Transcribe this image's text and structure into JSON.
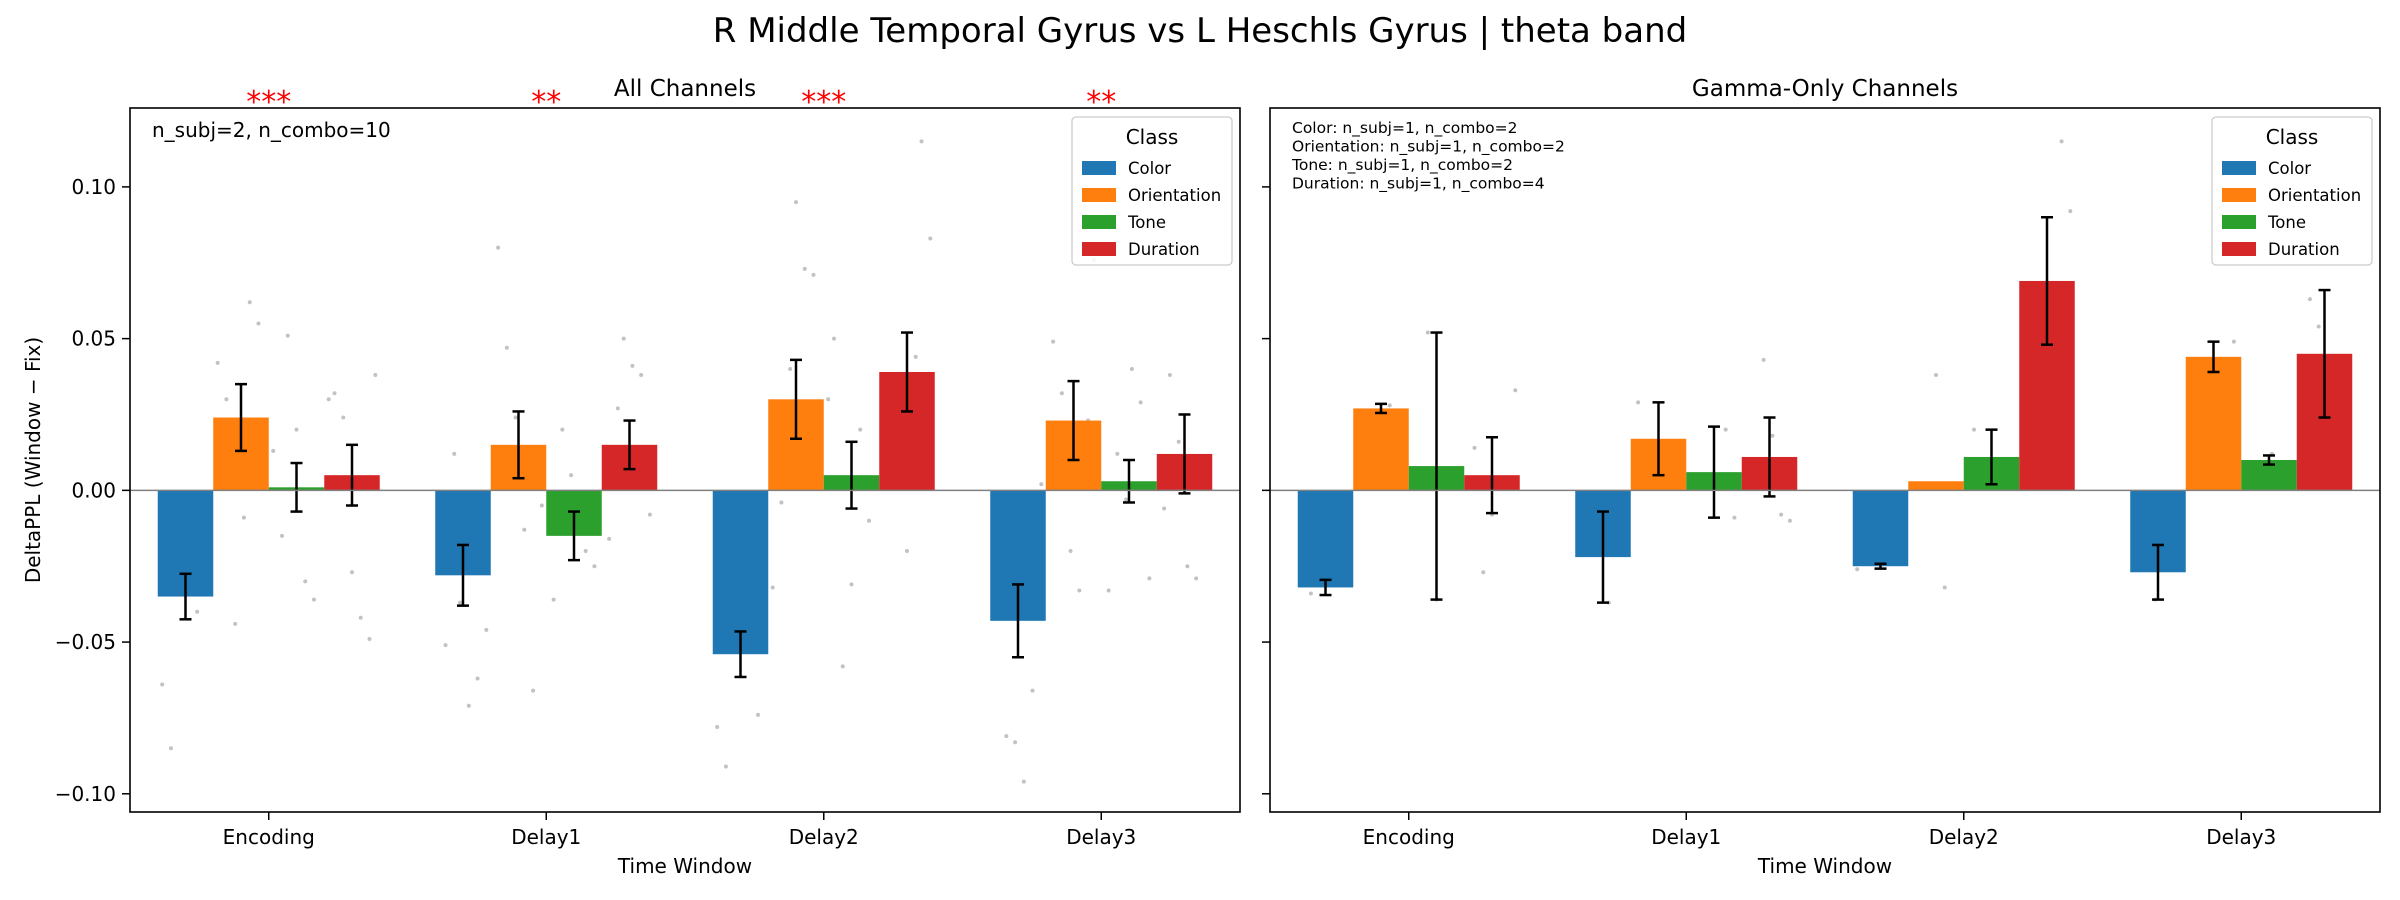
{
  "suptitle": "R Middle Temporal Gyrus vs L Heschls Gyrus  |  theta band",
  "colors": {
    "Color": "#1f77b4",
    "Orientation": "#ff7f0e",
    "Tone": "#2ca02c",
    "Duration": "#d62728",
    "significance": "#ff0000",
    "scatter": "#b3b3b3"
  },
  "legend_title": "Class",
  "classes": [
    "Color",
    "Orientation",
    "Tone",
    "Duration"
  ],
  "chart_data": [
    {
      "type": "bar",
      "title": "All Channels",
      "xlabel": "Time Window",
      "ylabel": "DeltaPPL (Window − Fix)",
      "ylim": [
        -0.106,
        0.126
      ],
      "yticks": [
        "0.10",
        "0.05",
        "0.00",
        "−0.05",
        "−0.10"
      ],
      "ytick_values": [
        0.1,
        0.05,
        0.0,
        -0.05,
        -0.1
      ],
      "categories": [
        "Encoding",
        "Delay1",
        "Delay2",
        "Delay3"
      ],
      "legend_placement": "top-right",
      "annotation": "n_subj=2, n_combo=10",
      "significance": [
        "***",
        "**",
        "***",
        "**"
      ],
      "series": [
        {
          "name": "Color",
          "values": [
            -0.035,
            -0.028,
            -0.054,
            -0.043
          ],
          "err": [
            0.0075,
            0.01,
            0.0075,
            0.012
          ]
        },
        {
          "name": "Orientation",
          "values": [
            0.024,
            0.015,
            0.03,
            0.023
          ],
          "err": [
            0.011,
            0.011,
            0.013,
            0.013
          ]
        },
        {
          "name": "Tone",
          "values": [
            0.001,
            -0.015,
            0.005,
            0.003
          ],
          "err": [
            0.008,
            0.008,
            0.011,
            0.007
          ]
        },
        {
          "name": "Duration",
          "values": [
            0.005,
            0.015,
            0.039,
            0.012
          ],
          "err": [
            0.01,
            0.008,
            0.013,
            0.013
          ]
        }
      ],
      "points": [
        [
          [
            -0.064,
            -0.085,
            -0.028,
            -0.02,
            -0.04
          ],
          [
            0.062,
            0.055,
            0.042,
            0.03,
            -0.044,
            -0.009
          ],
          [
            0.051,
            0.02,
            -0.03,
            -0.036,
            0.013,
            -0.015
          ],
          [
            0.038,
            0.032,
            0.024,
            -0.027,
            -0.042,
            -0.049,
            0.03
          ]
        ],
        [
          [
            -0.037,
            -0.071,
            -0.062,
            -0.046,
            -0.051,
            0.012
          ],
          [
            0.08,
            0.047,
            0.024,
            -0.013,
            -0.066,
            -0.005
          ],
          [
            -0.02,
            -0.025,
            -0.036,
            0.02,
            0.005,
            -0.01
          ],
          [
            0.05,
            0.041,
            0.038,
            -0.008,
            -0.016,
            0.027
          ]
        ],
        [
          [
            -0.074,
            -0.078,
            -0.091,
            -0.025,
            -0.035,
            -0.05
          ],
          [
            0.095,
            0.073,
            0.071,
            -0.032,
            -0.004,
            0.04
          ],
          [
            0.05,
            -0.058,
            -0.031,
            0.02,
            -0.01,
            0.03
          ],
          [
            0.115,
            0.083,
            0.018,
            0.015,
            -0.02,
            0.044
          ]
        ],
        [
          [
            -0.081,
            -0.083,
            -0.096,
            -0.066,
            0.002,
            -0.03
          ],
          [
            0.076,
            0.049,
            0.032,
            -0.02,
            -0.033,
            0.023
          ],
          [
            0.04,
            0.029,
            -0.029,
            -0.033,
            0.012,
            -0.003
          ],
          [
            0.038,
            0.016,
            -0.025,
            -0.029,
            0.01,
            -0.006
          ]
        ]
      ]
    },
    {
      "type": "bar",
      "title": "Gamma-Only Channels",
      "xlabel": "Time Window",
      "ylim": [
        -0.106,
        0.126
      ],
      "categories": [
        "Encoding",
        "Delay1",
        "Delay2",
        "Delay3"
      ],
      "legend_placement": "top-right",
      "annotation_lines": [
        "Color: n_subj=1, n_combo=2",
        "Orientation: n_subj=1, n_combo=2",
        "Tone: n_subj=1, n_combo=2",
        "Duration: n_subj=1, n_combo=4"
      ],
      "series": [
        {
          "name": "Color",
          "values": [
            -0.032,
            -0.022,
            -0.025,
            -0.027
          ],
          "err": [
            0.0025,
            0.015,
            0.0008,
            0.009
          ]
        },
        {
          "name": "Orientation",
          "values": [
            0.027,
            0.017,
            0.003,
            0.044
          ],
          "err": [
            0.0015,
            0.012,
            0.0,
            0.005
          ]
        },
        {
          "name": "Tone",
          "values": [
            0.008,
            0.006,
            0.011,
            0.01
          ],
          "err": [
            0.044,
            0.015,
            0.009,
            0.0015
          ]
        },
        {
          "name": "Duration",
          "values": [
            0.005,
            0.011,
            0.069,
            0.045
          ],
          "err": [
            0.0125,
            0.013,
            0.021,
            0.021
          ]
        }
      ],
      "points": [
        [
          [
            -0.03,
            -0.034
          ],
          [
            0.028,
            0.026
          ],
          [
            0.052,
            -0.036
          ],
          [
            0.033,
            0.014,
            -0.027,
            -0.008
          ]
        ],
        [
          [
            -0.007,
            -0.037
          ],
          [
            0.029,
            0.005
          ],
          [
            0.02,
            -0.009
          ],
          [
            0.043,
            0.018,
            -0.008,
            -0.01
          ]
        ],
        [
          [
            -0.024,
            -0.026
          ],
          [
            0.038,
            -0.032
          ],
          [
            0.02,
            0.002
          ],
          [
            0.115,
            0.092,
            0.05,
            0.038
          ]
        ],
        [
          [
            -0.018,
            -0.036
          ],
          [
            0.049,
            0.04
          ],
          [
            0.012,
            0.008
          ],
          [
            0.063,
            0.054,
            0.027,
            0.025
          ]
        ]
      ]
    }
  ]
}
